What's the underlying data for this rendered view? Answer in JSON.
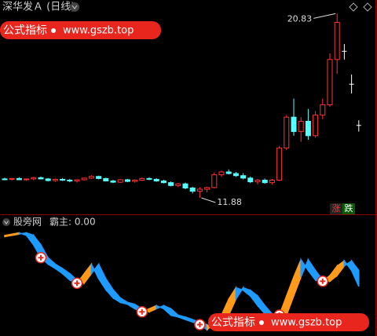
{
  "chart_data": [
    {
      "type": "candlestick",
      "title": "深华发Ａ (日线)",
      "open": [
        12.8,
        12.78,
        12.82,
        12.76,
        12.8,
        12.86,
        12.8,
        12.72,
        12.78,
        12.74,
        12.7,
        12.76,
        12.84,
        12.92,
        12.82,
        12.7,
        12.64,
        12.76,
        12.68,
        12.74,
        12.82,
        12.78,
        12.7,
        12.62,
        12.48,
        12.56,
        12.36,
        12.2,
        12.3,
        12.38,
        13.0,
        13.14,
        13.06,
        12.96,
        12.84,
        12.66,
        12.74,
        12.62,
        12.74,
        14.3,
        15.8,
        15.1,
        15.6,
        14.9,
        15.9,
        16.4,
        18.6,
        19.0,
        17.4,
        15.4
      ],
      "high": [
        12.86,
        12.84,
        12.88,
        12.82,
        12.9,
        12.92,
        12.84,
        12.82,
        12.84,
        12.8,
        12.78,
        12.86,
        12.98,
        12.96,
        12.86,
        12.76,
        12.8,
        12.8,
        12.78,
        12.86,
        12.88,
        12.84,
        12.76,
        12.68,
        12.6,
        12.62,
        12.42,
        12.4,
        12.42,
        13.12,
        13.2,
        13.26,
        13.14,
        13.08,
        12.92,
        12.8,
        12.82,
        12.8,
        14.4,
        15.9,
        16.7,
        15.8,
        16.2,
        16.1,
        16.7,
        18.9,
        20.83,
        19.35,
        17.87,
        15.65
      ],
      "low": [
        12.74,
        12.72,
        12.76,
        12.7,
        12.74,
        12.78,
        12.68,
        12.66,
        12.7,
        12.64,
        12.62,
        12.72,
        12.8,
        12.78,
        12.68,
        12.6,
        12.6,
        12.64,
        12.62,
        12.7,
        12.74,
        12.66,
        12.58,
        12.44,
        12.4,
        12.3,
        12.1,
        11.88,
        12.14,
        12.34,
        12.9,
        13.02,
        12.9,
        12.78,
        12.6,
        12.54,
        12.56,
        12.52,
        12.7,
        14.2,
        14.9,
        14.6,
        14.7,
        14.8,
        15.7,
        16.3,
        17.9,
        18.6,
        16.95,
        15.1
      ],
      "close": [
        12.78,
        12.82,
        12.76,
        12.8,
        12.86,
        12.8,
        12.72,
        12.78,
        12.74,
        12.7,
        12.76,
        12.84,
        12.92,
        12.82,
        12.7,
        12.64,
        12.76,
        12.68,
        12.74,
        12.82,
        12.78,
        12.7,
        12.62,
        12.48,
        12.56,
        12.36,
        12.2,
        12.3,
        12.38,
        13.0,
        13.14,
        13.06,
        12.96,
        12.84,
        12.66,
        12.74,
        12.62,
        12.74,
        14.3,
        15.8,
        15.1,
        15.6,
        14.9,
        15.9,
        16.4,
        18.6,
        20.4,
        19.0,
        17.4,
        15.4
      ],
      "ylim": [
        11.5,
        21.3
      ],
      "up_color": "#ff3232",
      "down_color": "#54ffff",
      "flat_color": "#ffffff",
      "legend": [
        "涨",
        "跌"
      ],
      "watermark": {
        "label": "公式指标",
        "url": "www.gszb.top"
      }
    },
    {
      "type": "band",
      "title": "股旁网",
      "value_label": "霸主: 0.00",
      "a": [
        96.3,
        97.5,
        98.8,
        96.3,
        86.9,
        74.4,
        68.1,
        63.8,
        58.8,
        52.5,
        49.4,
        58.8,
        68.1,
        53.8,
        43.1,
        35,
        30.6,
        28.8,
        24.4,
        21.3,
        24.4,
        27.5,
        24.4,
        18.1,
        16.3,
        13.8,
        11.3,
        8.8,
        3.8,
        10,
        18.1,
        33.8,
        45,
        42.5,
        36.9,
        27.5,
        19.4,
        16.3,
        18.1,
        36.9,
        55.6,
        72.5,
        61.9,
        52.5,
        51.3,
        56.9,
        66.3,
        71.3,
        61.9,
        46.3
      ],
      "b": [
        95,
        96.3,
        97.5,
        98.8,
        96.3,
        86.9,
        74.4,
        68.1,
        63.8,
        58.8,
        52.5,
        49.4,
        58.8,
        68.1,
        53.8,
        43.1,
        35,
        30.6,
        28.8,
        24.4,
        21.3,
        24.4,
        27.5,
        24.4,
        18.1,
        16.3,
        13.8,
        11.3,
        8.8,
        3.8,
        10,
        18.1,
        33.8,
        45,
        42.5,
        36.9,
        27.5,
        19.4,
        16.3,
        18.1,
        36.9,
        55.6,
        72.5,
        61.9,
        52.5,
        51.3,
        56.9,
        66.3,
        71.3,
        61.9
      ],
      "signals": [
        5,
        10,
        19,
        27,
        38,
        44
      ],
      "ylim": [
        0,
        100
      ],
      "rise_color": "#ff9a1a",
      "fall_color": "#1e9bff"
    }
  ]
}
